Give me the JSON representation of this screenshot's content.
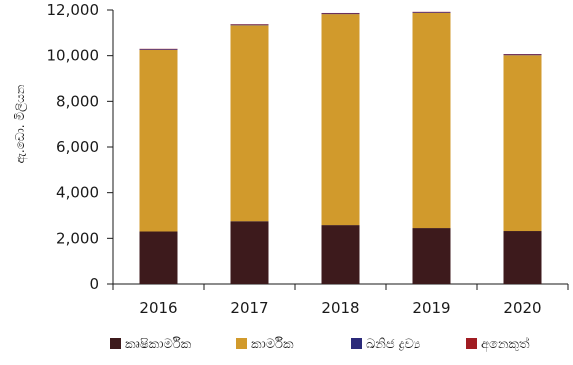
{
  "chart_data": {
    "type": "bar",
    "stacked": true,
    "title": "",
    "xlabel": "",
    "ylabel": "ඇ.ඩො. මිලියන",
    "ylim": [
      0,
      12000
    ],
    "yticks": [
      0,
      2000,
      4000,
      6000,
      8000,
      10000,
      12000
    ],
    "ytick_labels": [
      "0",
      "2,000",
      "4,000",
      "6,000",
      "8,000",
      "10,000",
      "12,000"
    ],
    "categories": [
      "2016",
      "2017",
      "2018",
      "2019",
      "2020"
    ],
    "grid": false,
    "legend_position": "bottom",
    "series": [
      {
        "name": "කෘෂිකාර්මික",
        "color": "#3d1a1c",
        "values": [
          2300,
          2750,
          2580,
          2450,
          2320
        ]
      },
      {
        "name": "කාර්මික",
        "color": "#d19a2c",
        "values": [
          7950,
          8580,
          9240,
          9420,
          7700
        ]
      },
      {
        "name": "ඛනිජ ද්‍රව්‍ය",
        "color": "#2b2a7a",
        "values": [
          30,
          30,
          30,
          30,
          30
        ]
      },
      {
        "name": "අනෙකුත්",
        "color": "#a01c22",
        "values": [
          20,
          20,
          20,
          20,
          20
        ]
      }
    ]
  }
}
